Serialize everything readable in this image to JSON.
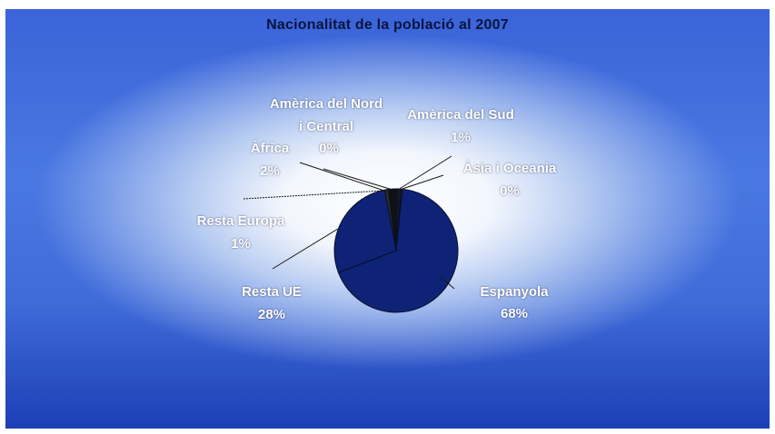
{
  "chart_data": {
    "type": "pie",
    "title": "Nacionalitat de la població al 2007",
    "slices": [
      {
        "name": "Espanyola",
        "value": 68,
        "label": "68%"
      },
      {
        "name": "Resta UE",
        "value": 28,
        "label": "28%"
      },
      {
        "name": "Resta Europa",
        "value": 1,
        "label": "1%"
      },
      {
        "name": "Àfrica",
        "value": 2,
        "label": "2%"
      },
      {
        "name": "Amèrica del Nord i Central",
        "value": 0,
        "label": "0%"
      },
      {
        "name": "Amèrica del Sud",
        "value": 1,
        "label": "1%"
      },
      {
        "name": "Àsia i Oceania",
        "value": 0,
        "label": "0%"
      }
    ],
    "colors": {
      "slice": "#0e2375",
      "accent_slices": [
        "#1a1a1a",
        "#2b2b2b",
        "#111111"
      ],
      "leader": "#1a1a1a"
    }
  },
  "labels": {
    "nord_line1": "Amèrica del Nord",
    "nord_line2": "i Central",
    "nord_value": "0%",
    "sud_line1": "Amèrica del Sud",
    "sud_value": "1%",
    "africa_line1": "Àfrica",
    "africa_value": "2%",
    "asia_line1": "Àsia i Oceania",
    "asia_value": "0%",
    "europa_line1": "Resta Europa",
    "europa_value": "1%",
    "ue_line1": "Resta UE",
    "ue_value": "28%",
    "esp_line1": "Espanyola",
    "esp_value": "68%"
  }
}
